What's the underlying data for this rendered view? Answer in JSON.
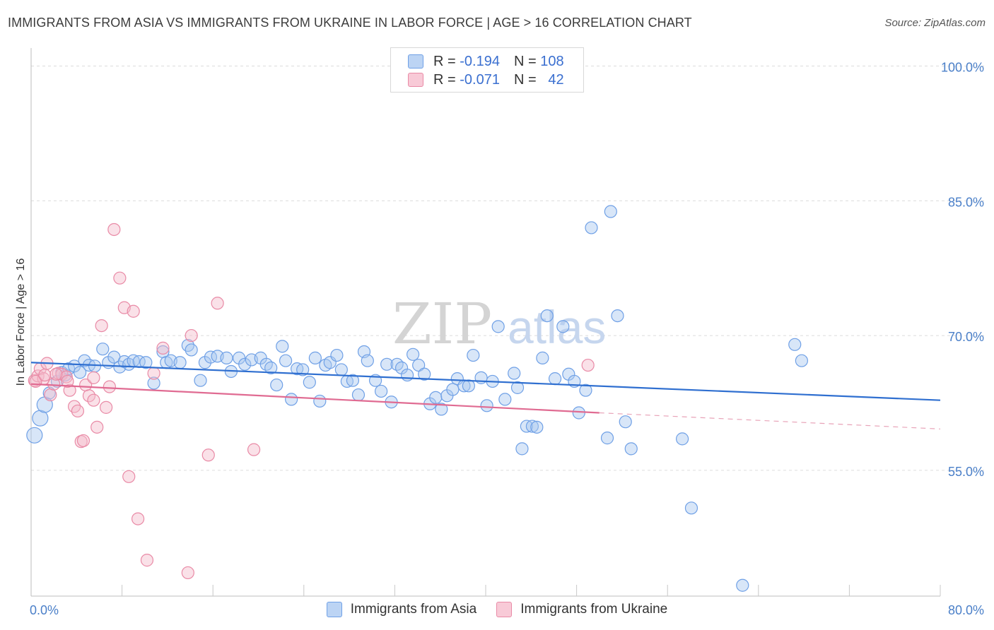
{
  "header": {
    "title": "IMMIGRANTS FROM ASIA VS IMMIGRANTS FROM UKRAINE IN LABOR FORCE | AGE > 16 CORRELATION CHART",
    "source": "Source: ZipAtlas.com"
  },
  "watermark": {
    "zip": "ZIP",
    "atlas": "atlas"
  },
  "legend": {
    "r_label": "R =",
    "n_label": "N =",
    "rows": [
      {
        "r": "-0.194",
        "n": "108"
      },
      {
        "r": "-0.071",
        "n": "42"
      }
    ]
  },
  "chart_data": {
    "type": "scatter",
    "title": "IMMIGRANTS FROM ASIA VS IMMIGRANTS FROM UKRAINE IN LABOR FORCE | AGE > 16 CORRELATION CHART",
    "xlabel": "",
    "ylabel": "In Labor Force | Age > 16",
    "xlim": [
      0,
      80
    ],
    "ylim": [
      41,
      102
    ],
    "x_tick_labels": [
      "0.0%",
      "80.0%"
    ],
    "y_ticks": [
      55,
      70,
      85,
      100
    ],
    "y_tick_labels": [
      "55.0%",
      "70.0%",
      "85.0%",
      "100.0%"
    ],
    "grid": true,
    "series": [
      {
        "name": "Immigrants from Asia",
        "color": "#6fa0e6",
        "fill": "#a9c8f0",
        "r": -0.194,
        "n": 108,
        "trend": {
          "x0": 0,
          "y0": 67.0,
          "x1": 80,
          "y1": 62.8
        },
        "points": [
          [
            0.3,
            58.9
          ],
          [
            0.8,
            60.8
          ],
          [
            1.2,
            62.3
          ],
          [
            1.6,
            63.6
          ],
          [
            2.3,
            64.9
          ],
          [
            2.7,
            65.9
          ],
          [
            3.0,
            65.6
          ],
          [
            3.3,
            66.3
          ],
          [
            3.8,
            66.6
          ],
          [
            4.3,
            65.9
          ],
          [
            4.7,
            67.2
          ],
          [
            5.1,
            66.7
          ],
          [
            5.6,
            66.6
          ],
          [
            6.3,
            68.5
          ],
          [
            6.8,
            67.0
          ],
          [
            7.3,
            67.6
          ],
          [
            7.8,
            66.5
          ],
          [
            8.2,
            67.1
          ],
          [
            8.6,
            66.8
          ],
          [
            9.0,
            67.2
          ],
          [
            9.5,
            67.1
          ],
          [
            10.1,
            67.0
          ],
          [
            10.8,
            64.7
          ],
          [
            11.6,
            68.2
          ],
          [
            11.9,
            67.0
          ],
          [
            12.3,
            67.2
          ],
          [
            13.1,
            67.0
          ],
          [
            13.8,
            68.9
          ],
          [
            14.1,
            68.4
          ],
          [
            14.9,
            65.0
          ],
          [
            15.3,
            67.0
          ],
          [
            15.8,
            67.6
          ],
          [
            16.4,
            67.7
          ],
          [
            17.2,
            67.5
          ],
          [
            17.6,
            66.0
          ],
          [
            18.3,
            67.5
          ],
          [
            18.8,
            66.8
          ],
          [
            19.4,
            67.3
          ],
          [
            20.2,
            67.5
          ],
          [
            20.7,
            66.8
          ],
          [
            21.1,
            66.4
          ],
          [
            21.6,
            64.5
          ],
          [
            22.1,
            68.8
          ],
          [
            22.4,
            67.2
          ],
          [
            22.9,
            62.9
          ],
          [
            23.4,
            66.3
          ],
          [
            23.9,
            66.2
          ],
          [
            24.5,
            64.8
          ],
          [
            25.0,
            67.5
          ],
          [
            25.4,
            62.7
          ],
          [
            25.9,
            66.7
          ],
          [
            26.3,
            67.0
          ],
          [
            26.9,
            67.8
          ],
          [
            27.3,
            66.2
          ],
          [
            27.8,
            64.9
          ],
          [
            28.3,
            65.0
          ],
          [
            28.8,
            63.4
          ],
          [
            29.3,
            68.2
          ],
          [
            29.6,
            67.2
          ],
          [
            30.3,
            65.0
          ],
          [
            30.8,
            63.8
          ],
          [
            31.3,
            66.8
          ],
          [
            31.7,
            62.6
          ],
          [
            32.2,
            66.8
          ],
          [
            32.6,
            66.4
          ],
          [
            33.1,
            65.6
          ],
          [
            33.6,
            67.9
          ],
          [
            34.1,
            66.7
          ],
          [
            34.6,
            65.7
          ],
          [
            35.1,
            62.4
          ],
          [
            35.6,
            63.1
          ],
          [
            36.1,
            61.8
          ],
          [
            36.6,
            63.3
          ],
          [
            37.1,
            64.0
          ],
          [
            37.5,
            65.2
          ],
          [
            38.1,
            64.4
          ],
          [
            38.5,
            64.4
          ],
          [
            38.9,
            67.8
          ],
          [
            39.6,
            65.3
          ],
          [
            40.1,
            62.2
          ],
          [
            40.6,
            64.9
          ],
          [
            41.1,
            71.0
          ],
          [
            41.7,
            62.9
          ],
          [
            42.5,
            65.8
          ],
          [
            42.8,
            64.2
          ],
          [
            43.2,
            57.4
          ],
          [
            43.6,
            59.9
          ],
          [
            44.1,
            59.9
          ],
          [
            44.5,
            59.8
          ],
          [
            45.0,
            67.5
          ],
          [
            45.4,
            72.2
          ],
          [
            46.1,
            65.2
          ],
          [
            46.8,
            71.0
          ],
          [
            47.3,
            65.7
          ],
          [
            47.8,
            64.9
          ],
          [
            48.2,
            61.4
          ],
          [
            48.8,
            63.9
          ],
          [
            49.3,
            82.0
          ],
          [
            50.7,
            58.6
          ],
          [
            51.0,
            83.8
          ],
          [
            51.6,
            72.2
          ],
          [
            52.3,
            60.4
          ],
          [
            52.8,
            57.4
          ],
          [
            57.3,
            58.5
          ],
          [
            58.1,
            50.8
          ],
          [
            62.6,
            42.2
          ],
          [
            67.2,
            69.0
          ],
          [
            67.8,
            67.2
          ]
        ]
      },
      {
        "name": "Immigrants from Ukraine",
        "color": "#e98aa6",
        "fill": "#f4bccc",
        "r": -0.071,
        "n": 42,
        "trend": {
          "x0": 0,
          "y0": 64.6,
          "x1": 50,
          "y1": 61.4,
          "dash_x1": 80,
          "dash_y1": 59.6
        },
        "points": [
          [
            0.3,
            65.0
          ],
          [
            0.6,
            65.5
          ],
          [
            0.8,
            66.3
          ],
          [
            1.1,
            65.2
          ],
          [
            1.4,
            66.9
          ],
          [
            1.7,
            63.4
          ],
          [
            2.0,
            64.6
          ],
          [
            2.4,
            65.8
          ],
          [
            2.7,
            65.7
          ],
          [
            3.1,
            65.4
          ],
          [
            3.4,
            63.9
          ],
          [
            3.8,
            62.1
          ],
          [
            4.1,
            61.6
          ],
          [
            4.4,
            58.2
          ],
          [
            4.8,
            64.5
          ],
          [
            5.1,
            63.3
          ],
          [
            5.5,
            65.3
          ],
          [
            5.8,
            59.8
          ],
          [
            6.2,
            71.1
          ],
          [
            6.6,
            62.0
          ],
          [
            6.9,
            64.3
          ],
          [
            7.3,
            81.8
          ],
          [
            7.8,
            76.4
          ],
          [
            8.2,
            73.1
          ],
          [
            8.6,
            54.3
          ],
          [
            9.0,
            72.7
          ],
          [
            9.4,
            49.6
          ],
          [
            10.2,
            45.0
          ],
          [
            10.8,
            65.8
          ],
          [
            11.6,
            68.6
          ],
          [
            13.8,
            43.6
          ],
          [
            14.1,
            70.0
          ],
          [
            15.6,
            56.7
          ],
          [
            16.4,
            73.6
          ],
          [
            19.6,
            57.3
          ],
          [
            49.0,
            66.7
          ],
          [
            0.4,
            64.9
          ],
          [
            1.2,
            65.6
          ],
          [
            2.2,
            65.7
          ],
          [
            3.2,
            64.9
          ],
          [
            4.6,
            58.3
          ],
          [
            5.5,
            62.8
          ]
        ]
      }
    ]
  }
}
